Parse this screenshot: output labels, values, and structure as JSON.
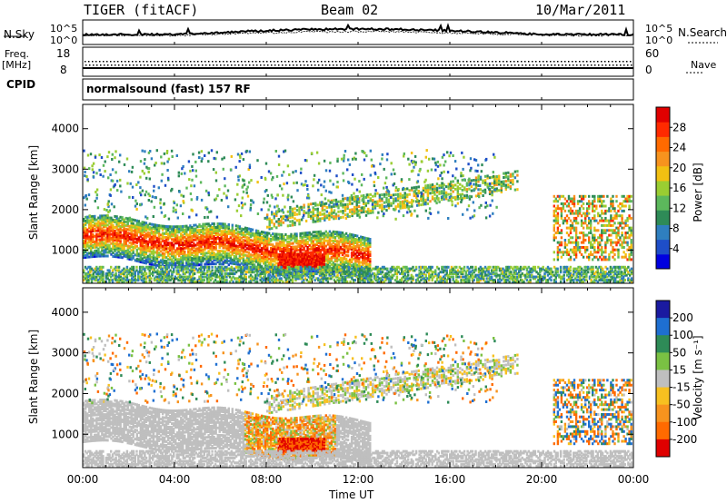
{
  "header": {
    "radar": "TIGER (fitACF)",
    "beam": "Beam 02",
    "date": "10/Mar/2011"
  },
  "strip": {
    "nsky_label": "N.Sky",
    "nsky_ticks": [
      "10^5",
      "10^0"
    ],
    "nsearch_label": "N.Search",
    "nsearch_ticks": [
      "10^5",
      "10^0"
    ],
    "freq_label": "Freq.",
    "freq_unit": "[MHz]",
    "freq_ticks": [
      "18",
      "8"
    ],
    "nave_label": "Nave",
    "nave_ticks": [
      "60",
      "0"
    ],
    "cpid_label": "CPID",
    "cpid_text": "normalsound (fast) 157 RF"
  },
  "chart_data": [
    {
      "type": "heatmap",
      "panel": "power",
      "ylabel": "Slant Range [km]",
      "yticks": [
        "4000",
        "3000",
        "2000",
        "1000"
      ],
      "ylim": [
        180,
        4600
      ],
      "xlim_hours": [
        0,
        24
      ],
      "colorbar": {
        "label": "Power [dB]",
        "ticks": [
          "28",
          "24",
          "20",
          "16",
          "12",
          "8",
          "4"
        ],
        "range": [
          0,
          32
        ],
        "colors": [
          "#0000e0",
          "#1e4ec8",
          "#2f7fbf",
          "#2e8b57",
          "#5cb85c",
          "#9acd32",
          "#f2c012",
          "#f7931e",
          "#ff6a00",
          "#ff2a00",
          "#e00000"
        ]
      }
    },
    {
      "type": "heatmap",
      "panel": "velocity",
      "ylabel": "Slant Range [km]",
      "yticks": [
        "4000",
        "3000",
        "2000",
        "1000"
      ],
      "ylim": [
        180,
        4600
      ],
      "xlim_hours": [
        0,
        24
      ],
      "colorbar": {
        "label": "Velocity [m s⁻¹]",
        "ticks": [
          "200",
          "100",
          "50",
          "15",
          "-15",
          "-50",
          "-100",
          "-200"
        ],
        "bands": [
          "#1a1aa0",
          "#1e6fd1",
          "#2e8b57",
          "#7ac143",
          "#bfbfbf",
          "#f7c020",
          "#f7931e",
          "#ff6a00",
          "#e00000"
        ]
      }
    }
  ],
  "xaxis": {
    "ticks": [
      "00:00",
      "04:00",
      "08:00",
      "12:00",
      "16:00",
      "20:00",
      "00:00"
    ],
    "label": "Time UT"
  }
}
